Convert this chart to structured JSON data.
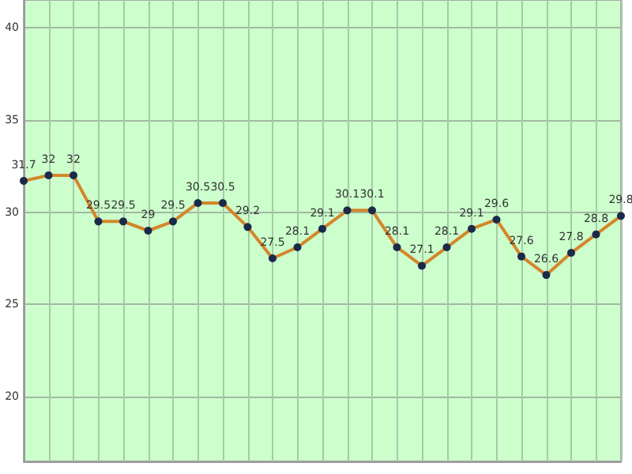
{
  "chart_data": {
    "type": "line",
    "categories": [
      null,
      null,
      null,
      null,
      null,
      null,
      null,
      null,
      null,
      null,
      null,
      null,
      null,
      null,
      null,
      null,
      null,
      null,
      null,
      null,
      null,
      null,
      null,
      null,
      null
    ],
    "values": [
      31.7,
      32,
      32,
      29.5,
      29.5,
      29,
      29.5,
      30.5,
      30.5,
      29.2,
      27.5,
      28.1,
      29.1,
      30.1,
      30.1,
      28.1,
      27.1,
      28.1,
      29.1,
      29.6,
      27.6,
      26.6,
      27.8,
      28.8,
      29.8
    ],
    "color": "#d4862a",
    "marker": "circle",
    "data_labels": true,
    "grid": true,
    "ylim": [
      16.5,
      41.5
    ],
    "yticks": [
      20,
      25,
      30,
      35,
      40
    ]
  }
}
